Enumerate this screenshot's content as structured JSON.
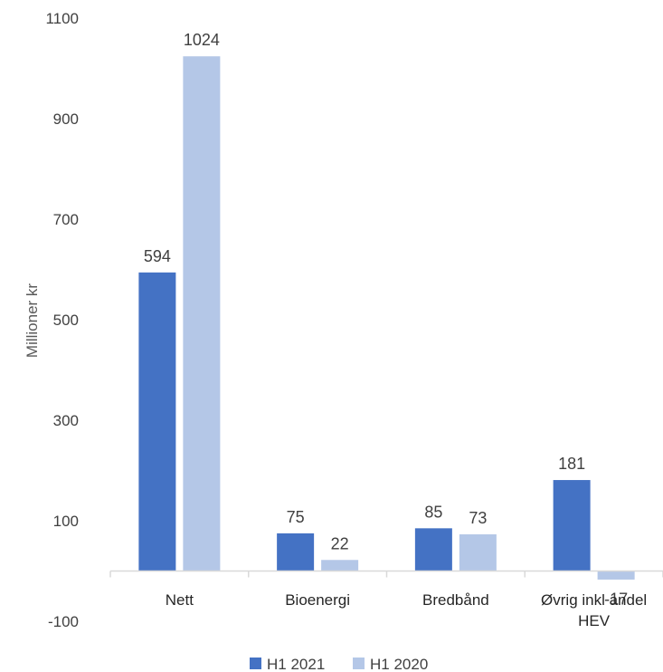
{
  "chart_data": {
    "type": "bar",
    "categories": [
      "Nett",
      "Bioenergi",
      "Bredbånd",
      "Øvrig inkl andel HEV"
    ],
    "category_lines": [
      [
        "Nett"
      ],
      [
        "Bioenergi"
      ],
      [
        "Bredbånd"
      ],
      [
        "Øvrig inkl andel",
        "HEV"
      ]
    ],
    "series": [
      {
        "name": "H1 2021",
        "values": [
          594,
          75,
          85,
          181
        ],
        "color": "#4472C4"
      },
      {
        "name": "H1 2020",
        "values": [
          1024,
          22,
          73,
          -17
        ],
        "color": "#B4C7E7"
      }
    ],
    "ylabel": "Millioner kr",
    "ylim": [
      -100,
      1100
    ],
    "yticks": [
      -100,
      100,
      300,
      500,
      700,
      900,
      1100
    ],
    "grid": false,
    "legend": "bottom"
  }
}
